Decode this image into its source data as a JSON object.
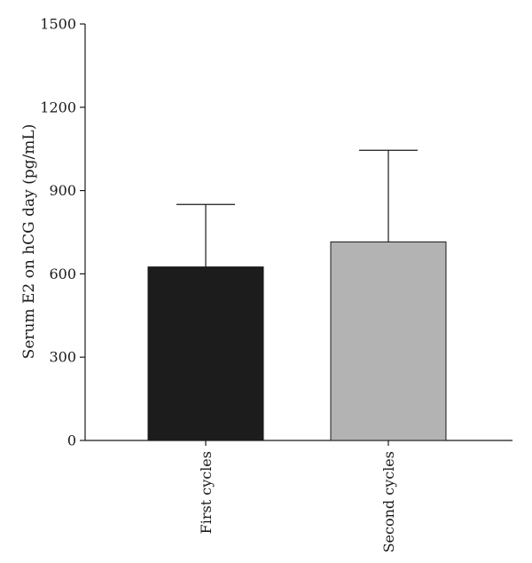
{
  "chart_data": {
    "type": "bar",
    "categories": [
      "First cycles",
      "Second cycles"
    ],
    "values": [
      625,
      715
    ],
    "error_plus": [
      225,
      330
    ],
    "bar_colors": [
      "#1c1c1c",
      "#b3b3b3"
    ],
    "title": "",
    "xlabel": "",
    "ylabel": "Serum E2 on hCG day (pg/mL)",
    "ylim": [
      0,
      1500
    ],
    "yticks": [
      0,
      300,
      600,
      900,
      1200,
      1500
    ],
    "grid": false
  }
}
